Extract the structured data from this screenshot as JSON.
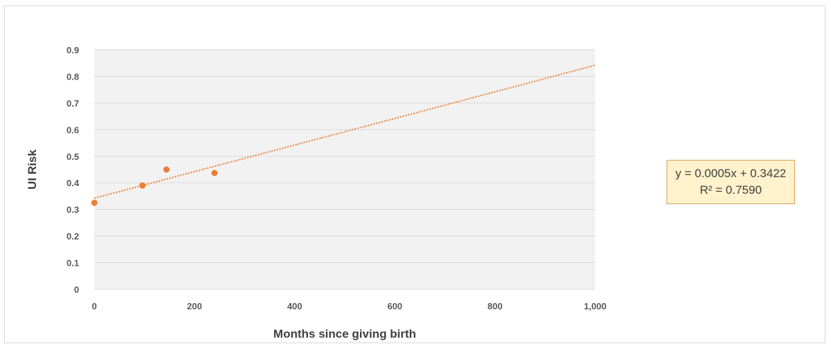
{
  "chart_data": {
    "type": "scatter",
    "xlabel": "Months since giving birth",
    "ylabel": "UI Risk",
    "xlim": [
      0,
      1000
    ],
    "ylim": [
      0,
      0.9
    ],
    "x_ticks": [
      0,
      200,
      400,
      600,
      800,
      1000
    ],
    "x_tick_labels": [
      "0",
      "200",
      "400",
      "600",
      "800",
      "1,000"
    ],
    "y_ticks": [
      0,
      0.1,
      0.2,
      0.3,
      0.4,
      0.5,
      0.6,
      0.7,
      0.8,
      0.9
    ],
    "y_tick_labels": [
      "0",
      "0.1",
      "0.2",
      "0.3",
      "0.4",
      "0.5",
      "0.6",
      "0.7",
      "0.8",
      "0.9"
    ],
    "grid": true,
    "series": [
      {
        "points": [
          {
            "x": 0,
            "y": 0.325
          },
          {
            "x": 96,
            "y": 0.39
          },
          {
            "x": 144,
            "y": 0.45
          },
          {
            "x": 240,
            "y": 0.437
          }
        ],
        "color": "#ed7d31"
      }
    ],
    "trendline": {
      "type": "linear",
      "slope": 0.0005,
      "intercept": 0.3422,
      "x_range": [
        0,
        1000
      ],
      "style": "dotted",
      "color": "#ed7d31",
      "equation_text": "y = 0.0005x + 0.3422",
      "r2_text": "R² = 0.7590"
    },
    "plot_background": "#f2f2f2",
    "grid_color": "#d9d9d9"
  }
}
